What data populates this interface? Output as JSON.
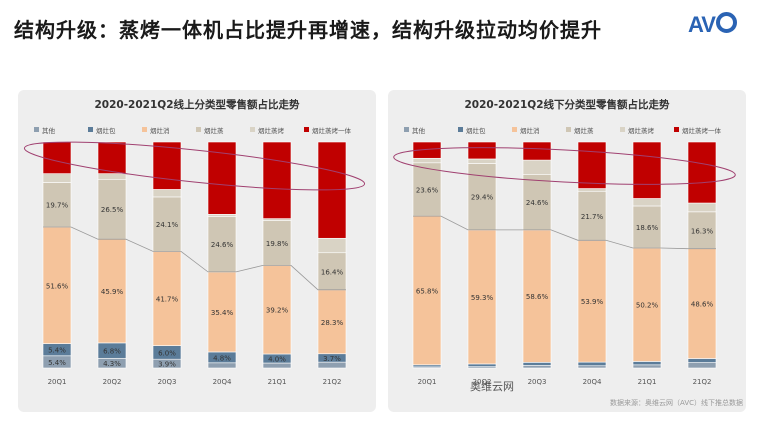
{
  "title": "结构升级：蒸烤一体机占比提升再增速，结构升级拉动均价提升",
  "logo": {
    "text": "AV",
    "brand_color": "#2a63b4"
  },
  "watermark": "奥维云网",
  "source_note": "数据来源：奥维云网（AVC）线下推总数据",
  "colors": {
    "其他": "#8e9fb0",
    "烟灶包": "#5b7c99",
    "烟灶消": "#f5c39a",
    "烟灶蒸": "#cfc6b4",
    "烟灶蒸烤": "#d9d3c5",
    "烟灶蒸烤一体": "#c00000"
  },
  "chart_data": [
    {
      "type": "bar",
      "stacked": true,
      "title": "2020-2021Q2线上分类型零售额占比走势",
      "categories": [
        "20Q1",
        "20Q2",
        "20Q3",
        "20Q4",
        "21Q1",
        "21Q2"
      ],
      "legend": [
        "其他",
        "烟灶包",
        "烟灶消",
        "烟灶蒸",
        "烟灶蒸烤",
        "烟灶蒸烤一体"
      ],
      "legend_position": "top",
      "series": [
        {
          "name": "其他",
          "values": [
            5.4,
            4.3,
            3.9,
            2.3,
            2.2,
            2.6
          ]
        },
        {
          "name": "烟灶包",
          "values": [
            5.4,
            6.8,
            6.0,
            4.8,
            4.0,
            3.7
          ]
        },
        {
          "name": "烟灶消",
          "values": [
            51.6,
            45.9,
            41.7,
            35.4,
            39.2,
            28.3
          ]
        },
        {
          "name": "烟灶蒸",
          "values": [
            19.7,
            26.5,
            24.1,
            24.6,
            19.8,
            16.4
          ]
        },
        {
          "name": "烟灶蒸烤",
          "values": [
            3.9,
            2.5,
            3.3,
            0.9,
            0.9,
            6.4
          ]
        },
        {
          "name": "烟灶蒸烤一体",
          "values": [
            14.0,
            14.0,
            21.0,
            32.0,
            33.9,
            42.6
          ]
        }
      ],
      "labels": {
        "其他": [
          "5.4%",
          "4.3%",
          "3.9%",
          "2.3%",
          "2.2%",
          "2.6%"
        ],
        "烟灶包": [
          "5.4%",
          "6.8%",
          "6.0%",
          "4.8%",
          "4.0%",
          "3.7%"
        ],
        "烟灶消": [
          "51.6%",
          "45.9%",
          "41.7%",
          "35.4%",
          "39.2%",
          "28.3%"
        ],
        "烟灶蒸": [
          "19.7%",
          "26.5%",
          "24.1%",
          "24.6%",
          "19.8%",
          "16.4%"
        ]
      },
      "ylim": [
        0,
        100
      ],
      "grid": false
    },
    {
      "type": "bar",
      "stacked": true,
      "title": "2020-2021Q2线下分类型零售额占比走势",
      "categories": [
        "20Q1",
        "20Q2",
        "20Q3",
        "20Q4",
        "21Q1",
        "21Q2"
      ],
      "legend": [
        "其他",
        "烟灶包",
        "烟灶消",
        "烟灶蒸",
        "烟灶蒸烤",
        "烟灶蒸烤一体"
      ],
      "legend_position": "top",
      "series": [
        {
          "name": "其他",
          "values": [
            0.5,
            0.6,
            1.2,
            1.0,
            1.4,
            2.4
          ]
        },
        {
          "name": "烟灶包",
          "values": [
            0.9,
            1.2,
            1.3,
            1.6,
            1.5,
            1.8
          ]
        },
        {
          "name": "烟灶消",
          "values": [
            65.8,
            59.3,
            58.6,
            53.9,
            50.2,
            48.6
          ]
        },
        {
          "name": "烟灶蒸",
          "values": [
            23.6,
            29.4,
            24.6,
            21.7,
            18.6,
            16.3
          ]
        },
        {
          "name": "烟灶蒸烤",
          "values": [
            2.0,
            2.0,
            6.3,
            1.2,
            3.3,
            3.9
          ]
        },
        {
          "name": "烟灶蒸烤一体",
          "values": [
            7.2,
            7.5,
            8.0,
            20.6,
            25.0,
            27.0
          ]
        }
      ],
      "labels": {
        "烟灶消": [
          "65.8%",
          "59.3%",
          "58.6%",
          "53.9%",
          "50.2%",
          "48.6%"
        ],
        "烟灶蒸": [
          "23.6%",
          "29.4%",
          "24.6%",
          "21.7%",
          "18.6%",
          "16.3%"
        ]
      },
      "ylim": [
        0,
        100
      ],
      "grid": false
    }
  ]
}
